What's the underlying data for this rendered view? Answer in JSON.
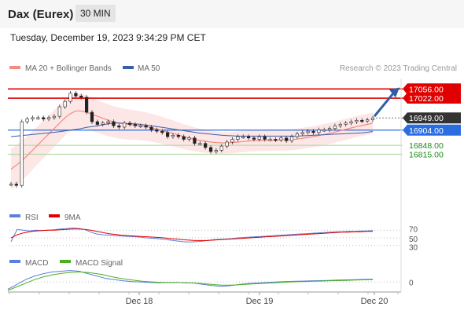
{
  "header": {
    "instrument": "Dax (Eurex)",
    "timeframe": "30 MIN",
    "datetime": "Tuesday, December 19, 2023 9:34:29 PM CET"
  },
  "legend": {
    "ma20_label": "MA 20 + Bollinger Bands",
    "ma20_color": "#f28b82",
    "ma50_label": "MA 50",
    "ma50_color": "#3a5ea8",
    "credit": "Research © 2023 Trading Central"
  },
  "rsi_legend": {
    "rsi_label": "RSI",
    "rsi_color": "#5b7fdb",
    "ma_label": "9MA",
    "ma_color": "#e00000"
  },
  "macd_legend": {
    "macd_label": "MACD",
    "macd_color": "#5b7fdb",
    "signal_label": "MACD Signal",
    "signal_color": "#4caf20"
  },
  "levels": [
    {
      "value": 17056.0,
      "label": "17056.00",
      "type": "resistance",
      "color": "#e00000"
    },
    {
      "value": 17022.0,
      "label": "17022.00",
      "type": "resistance",
      "color": "#e00000"
    },
    {
      "value": 16949.0,
      "label": "16949.00",
      "type": "last",
      "color": "#333333"
    },
    {
      "value": 16904.0,
      "label": "16904.00",
      "type": "pivot",
      "color": "#2a6de0"
    },
    {
      "value": 16848.0,
      "label": "16848.00",
      "type": "support",
      "color": "#1a8a1a"
    },
    {
      "value": 16815.0,
      "label": "16815.00",
      "type": "support",
      "color": "#1a8a1a"
    }
  ],
  "rsi_levels": [
    "70",
    "50",
    "30"
  ],
  "macd_zero": "0",
  "x_labels": [
    "Dec 18",
    "Dec 19",
    "Dec 20"
  ],
  "chart_data": {
    "type": "candlestick",
    "price": [
      16705,
      16700,
      16935,
      16945,
      16950,
      16950,
      16945,
      16950,
      16955,
      16990,
      17010,
      17040,
      17030,
      17025,
      16970,
      16935,
      16925,
      16930,
      16935,
      16920,
      16915,
      16930,
      16925,
      16920,
      16920,
      16915,
      16905,
      16900,
      16895,
      16880,
      16885,
      16880,
      16870,
      16875,
      16855,
      16855,
      16840,
      16825,
      16830,
      16845,
      16860,
      16870,
      16880,
      16880,
      16875,
      16870,
      16880,
      16870,
      16870,
      16868,
      16875,
      16865,
      16880,
      16890,
      16895,
      16900,
      16895,
      16905,
      16905,
      16910,
      16920,
      16925,
      16930,
      16935,
      16940,
      16938,
      16942,
      16949
    ],
    "ma20": [
      16760,
      16775,
      16790,
      16810,
      16830,
      16850,
      16870,
      16890,
      16910,
      16930,
      16950,
      16965,
      16975,
      16975,
      16970,
      16962,
      16955,
      16948,
      16940,
      16935,
      16930,
      16927,
      16924,
      16922,
      16920,
      16917,
      16913,
      16908,
      16903,
      16897,
      16892,
      16886,
      16880,
      16875,
      16870,
      16866,
      16863,
      16860,
      16858,
      16857,
      16857,
      16858,
      16860,
      16862,
      16864,
      16865,
      16866,
      16866,
      16867,
      16867,
      16868,
      16868,
      16869,
      16871,
      16874,
      16877,
      16880,
      16884,
      16888,
      16892,
      16897,
      16902,
      16907,
      16912,
      16917,
      16921,
      16925,
      16930
    ],
    "ma50": [
      16880,
      16882,
      16884,
      16886,
      16888,
      16890,
      16892,
      16894,
      16896,
      16898,
      16901,
      16904,
      16907,
      16910,
      16914,
      16917,
      16920,
      16924,
      16927,
      16930,
      16930,
      16929,
      16928,
      16927,
      16925,
      16923,
      16920,
      16917,
      16914,
      16911,
      16908,
      16905,
      16902,
      16899,
      16896,
      16893,
      16891,
      16889,
      16887,
      16885,
      16884,
      16883,
      16882,
      16882,
      16882,
      16882,
      16882,
      16882,
      16882,
      16882,
      16882,
      16882,
      16882,
      16882,
      16883,
      16884,
      16885,
      16886,
      16887,
      16888,
      16889,
      16890,
      16891,
      16892,
      16893,
      16894,
      16896,
      16899
    ],
    "rsi": [
      40,
      72,
      70,
      68,
      70,
      69,
      70,
      71,
      73,
      74,
      76,
      75,
      72,
      65,
      60,
      58,
      57,
      56,
      55,
      54,
      53,
      52,
      50,
      49,
      48,
      46,
      44,
      42,
      40,
      39,
      40,
      41,
      43,
      45,
      46,
      47,
      48,
      50,
      51,
      52,
      53,
      54,
      55,
      56,
      57,
      58,
      59,
      60,
      61,
      62,
      63,
      64,
      65,
      66,
      66,
      67,
      67,
      68,
      68,
      69
    ],
    "rsi_ma": [
      50,
      58,
      63,
      66,
      68,
      69,
      70,
      70,
      71,
      72,
      73,
      73,
      72,
      70,
      67,
      64,
      61,
      59,
      57,
      56,
      55,
      54,
      53,
      52,
      51,
      50,
      48,
      47,
      45,
      44,
      43,
      43,
      43,
      44,
      45,
      46,
      47,
      48,
      49,
      50,
      51,
      52,
      53,
      54,
      55,
      56,
      57,
      58,
      59,
      60,
      61,
      62,
      63,
      64,
      65,
      65,
      66,
      66,
      67,
      67
    ],
    "macd": [
      -30,
      -10,
      10,
      25,
      35,
      42,
      45,
      48,
      45,
      35,
      25,
      15,
      10,
      5,
      2,
      0,
      -2,
      -3,
      -2,
      -2,
      -3,
      -5,
      -10,
      -15,
      -18,
      -15,
      -10,
      -6,
      -4,
      -2,
      0,
      2,
      3,
      4,
      5,
      6,
      7,
      8,
      9,
      10,
      11,
      12
    ],
    "macd_signal": [
      -35,
      -20,
      -5,
      10,
      22,
      30,
      36,
      40,
      42,
      40,
      35,
      28,
      20,
      13,
      8,
      4,
      1,
      -1,
      -2,
      -2,
      -3,
      -4,
      -7,
      -10,
      -13,
      -13,
      -11,
      -9,
      -7,
      -5,
      -3,
      -1,
      1,
      2,
      3,
      4,
      5,
      6,
      7,
      8,
      9,
      10
    ]
  }
}
